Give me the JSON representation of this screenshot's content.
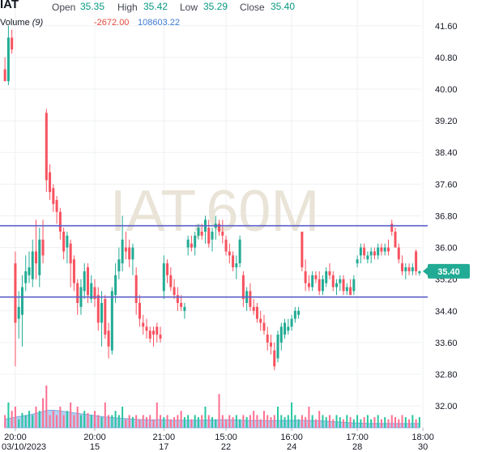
{
  "header": {
    "symbol": "IAT",
    "open_label": "Open",
    "open_value": "35.35",
    "high_label": "High",
    "high_value": "35.42",
    "low_label": "Low",
    "low_value": "35.29",
    "close_label": "Close",
    "close_value": "35.40",
    "volume_label": "Volume",
    "volume_period": "(9)",
    "volume_value_1": "-2672.00",
    "volume_value_2": "108603.22"
  },
  "watermark": "IAT,60M",
  "colors": {
    "up": "#22ab94",
    "down": "#f7525f",
    "level_line": "#5b5fc7",
    "volume_area": "#b6d0f0",
    "volume_area_stroke": "#7aa6df",
    "price_badge": "#22ab94",
    "grid": "#eef0f3"
  },
  "chart_data": {
    "type": "candlestick",
    "y_ticks": [
      "41.60",
      "40.80",
      "40.00",
      "39.20",
      "38.40",
      "37.60",
      "36.80",
      "36.00",
      "35.20",
      "34.40",
      "33.60",
      "32.80",
      "32.00"
    ],
    "ylim": [
      31.45,
      42.25
    ],
    "x_ticks": [
      {
        "bar": 3,
        "time": "20:00",
        "date": "03/10/2023"
      },
      {
        "bar": 26,
        "time": "20:00",
        "date": "15"
      },
      {
        "bar": 46,
        "time": "21:00",
        "date": "17"
      },
      {
        "bar": 64,
        "time": "15:00",
        "date": "22"
      },
      {
        "bar": 83,
        "time": "16:00",
        "date": "24"
      },
      {
        "bar": 102,
        "time": "17:00",
        "date": "28"
      },
      {
        "bar": 121,
        "time": "18:00",
        "date": "30"
      }
    ],
    "horizontal_levels": [
      36.55,
      34.75
    ],
    "last_price": "35.40",
    "candles": [
      [
        40.5,
        40.8,
        40.2,
        40.2
      ],
      [
        40.2,
        41.6,
        40.1,
        41.3
      ],
      [
        41.3,
        41.5,
        40.9,
        41.0
      ],
      [
        35.6,
        35.9,
        33.0,
        34.1
      ],
      [
        34.2,
        34.9,
        33.7,
        34.5
      ],
      [
        34.3,
        35.3,
        33.5,
        35.0
      ],
      [
        35.1,
        35.8,
        34.9,
        35.4
      ],
      [
        35.3,
        35.9,
        35.1,
        35.5
      ],
      [
        35.2,
        36.2,
        35.0,
        35.9
      ],
      [
        35.9,
        36.7,
        35.2,
        35.6
      ],
      [
        35.3,
        36.5,
        35.0,
        36.2
      ],
      [
        36.2,
        36.7,
        35.6,
        35.8
      ],
      [
        39.4,
        39.5,
        37.4,
        37.7
      ],
      [
        37.9,
        38.1,
        37.2,
        37.4
      ],
      [
        37.5,
        37.6,
        36.9,
        37.1
      ],
      [
        37.2,
        37.3,
        36.6,
        36.9
      ],
      [
        36.9,
        37.0,
        36.2,
        36.4
      ],
      [
        36.4,
        36.5,
        35.7,
        35.9
      ],
      [
        36.0,
        36.4,
        35.6,
        36.3
      ],
      [
        36.1,
        36.2,
        35.0,
        35.6
      ],
      [
        35.7,
        35.8,
        34.9,
        35.1
      ],
      [
        35.1,
        35.2,
        34.3,
        34.6
      ],
      [
        34.5,
        35.2,
        34.3,
        35.0
      ],
      [
        34.9,
        35.6,
        34.7,
        35.4
      ],
      [
        35.5,
        35.6,
        34.6,
        34.8
      ],
      [
        34.7,
        35.3,
        34.6,
        35.1
      ],
      [
        35.0,
        35.2,
        34.5,
        34.7
      ],
      [
        34.8,
        35.0,
        33.9,
        34.1
      ],
      [
        34.1,
        34.9,
        33.5,
        34.6
      ],
      [
        34.7,
        34.8,
        33.7,
        33.8
      ],
      [
        33.9,
        34.1,
        33.2,
        33.5
      ],
      [
        33.4,
        35.0,
        33.3,
        34.9
      ],
      [
        34.8,
        35.6,
        34.6,
        35.3
      ],
      [
        35.4,
        36.0,
        35.2,
        35.7
      ],
      [
        35.6,
        36.8,
        35.4,
        36.2
      ],
      [
        36.0,
        36.4,
        35.7,
        35.9
      ],
      [
        36.0,
        36.2,
        35.5,
        35.7
      ],
      [
        35.7,
        36.1,
        35.3,
        36.0
      ],
      [
        35.3,
        35.5,
        34.3,
        34.6
      ],
      [
        34.6,
        34.8,
        34.0,
        34.2
      ],
      [
        34.1,
        34.3,
        33.8,
        34.0
      ],
      [
        34.0,
        34.2,
        33.7,
        33.9
      ],
      [
        33.9,
        34.0,
        33.6,
        33.7
      ],
      [
        33.9,
        34.0,
        33.5,
        33.8
      ],
      [
        34.0,
        34.1,
        33.6,
        33.8
      ],
      [
        33.8,
        34.0,
        33.6,
        33.7
      ],
      [
        34.9,
        35.8,
        34.7,
        35.6
      ],
      [
        35.6,
        35.7,
        35.1,
        35.3
      ],
      [
        35.3,
        35.5,
        34.9,
        35.0
      ],
      [
        35.0,
        35.2,
        34.7,
        34.8
      ],
      [
        34.8,
        35.0,
        34.4,
        34.6
      ],
      [
        34.6,
        34.8,
        34.4,
        34.5
      ],
      [
        34.4,
        34.6,
        34.2,
        34.5
      ],
      [
        36.0,
        36.3,
        35.8,
        36.2
      ],
      [
        36.1,
        36.3,
        35.9,
        36.0
      ],
      [
        36.0,
        36.4,
        35.8,
        36.3
      ],
      [
        36.3,
        36.6,
        36.2,
        36.5
      ],
      [
        36.4,
        36.6,
        36.2,
        36.3
      ],
      [
        36.4,
        36.8,
        36.1,
        36.7
      ],
      [
        36.5,
        36.7,
        36.0,
        36.1
      ],
      [
        36.2,
        36.5,
        35.9,
        36.4
      ],
      [
        36.5,
        36.8,
        36.2,
        36.6
      ],
      [
        36.6,
        36.7,
        36.3,
        36.4
      ],
      [
        36.4,
        36.7,
        36.1,
        36.3
      ],
      [
        36.2,
        36.3,
        35.8,
        35.9
      ],
      [
        35.9,
        36.1,
        35.6,
        35.8
      ],
      [
        35.8,
        35.9,
        35.4,
        35.5
      ],
      [
        35.5,
        35.8,
        35.2,
        35.6
      ],
      [
        35.6,
        36.3,
        35.5,
        36.2
      ],
      [
        35.3,
        35.4,
        34.5,
        34.7
      ],
      [
        34.6,
        35.0,
        34.4,
        34.9
      ],
      [
        34.9,
        35.1,
        34.4,
        34.5
      ],
      [
        34.5,
        34.7,
        34.3,
        34.4
      ],
      [
        34.5,
        34.6,
        34.1,
        34.2
      ],
      [
        34.2,
        34.4,
        33.9,
        34.1
      ],
      [
        34.1,
        34.3,
        33.8,
        33.9
      ],
      [
        33.8,
        34.0,
        33.4,
        33.6
      ],
      [
        33.6,
        33.8,
        33.3,
        33.5
      ],
      [
        33.4,
        33.6,
        32.9,
        33.0
      ],
      [
        33.2,
        33.9,
        33.1,
        33.8
      ],
      [
        33.6,
        34.1,
        33.4,
        34.0
      ],
      [
        33.8,
        34.2,
        33.7,
        34.1
      ],
      [
        33.9,
        34.2,
        33.8,
        34.0
      ],
      [
        34.0,
        34.3,
        33.9,
        34.2
      ],
      [
        34.2,
        34.5,
        34.1,
        34.4
      ],
      [
        34.3,
        34.5,
        34.2,
        34.4
      ],
      [
        36.4,
        36.4,
        35.4,
        35.5
      ],
      [
        35.4,
        35.7,
        34.9,
        35.1
      ],
      [
        35.1,
        35.3,
        34.9,
        35.0
      ],
      [
        35.0,
        35.4,
        34.9,
        35.3
      ],
      [
        35.3,
        35.4,
        35.1,
        35.2
      ],
      [
        35.2,
        35.4,
        34.8,
        34.9
      ],
      [
        34.9,
        35.3,
        34.8,
        35.2
      ],
      [
        35.1,
        35.5,
        35.0,
        35.4
      ],
      [
        35.4,
        35.6,
        35.2,
        35.3
      ],
      [
        35.3,
        35.4,
        34.9,
        35.0
      ],
      [
        35.0,
        35.2,
        34.8,
        35.1
      ],
      [
        35.1,
        35.3,
        34.9,
        35.2
      ],
      [
        35.2,
        35.3,
        34.8,
        34.9
      ],
      [
        34.9,
        35.1,
        34.8,
        35.0
      ],
      [
        35.0,
        35.2,
        34.8,
        34.8
      ],
      [
        34.9,
        35.3,
        34.8,
        35.2
      ],
      [
        35.6,
        35.8,
        35.5,
        35.7
      ],
      [
        35.8,
        36.1,
        35.6,
        36.0
      ],
      [
        36.0,
        36.1,
        35.7,
        35.8
      ],
      [
        35.7,
        35.9,
        35.6,
        35.8
      ],
      [
        35.8,
        36.0,
        35.6,
        35.9
      ],
      [
        35.9,
        36.0,
        35.7,
        35.8
      ],
      [
        35.8,
        36.1,
        35.7,
        36.0
      ],
      [
        36.0,
        36.1,
        35.8,
        35.9
      ],
      [
        35.9,
        36.1,
        35.8,
        36.0
      ],
      [
        36.0,
        36.2,
        35.8,
        35.9
      ],
      [
        36.6,
        36.7,
        36.3,
        36.4
      ],
      [
        36.4,
        36.5,
        36.0,
        36.0
      ],
      [
        36.0,
        36.1,
        35.6,
        35.7
      ],
      [
        35.6,
        35.8,
        35.3,
        35.4
      ],
      [
        35.4,
        35.6,
        35.2,
        35.5
      ],
      [
        35.5,
        35.6,
        35.3,
        35.4
      ],
      [
        35.4,
        35.6,
        35.3,
        35.5
      ],
      [
        35.9,
        35.95,
        35.3,
        35.4
      ],
      [
        35.35,
        35.42,
        35.29,
        35.4
      ]
    ],
    "volumes": [
      0.3,
      0.6,
      0.4,
      0.5,
      0.2,
      0.35,
      0.3,
      0.4,
      0.3,
      0.5,
      0.4,
      0.7,
      1.0,
      0.3,
      0.4,
      0.3,
      0.5,
      0.3,
      0.4,
      0.6,
      0.3,
      0.5,
      0.3,
      0.4,
      0.35,
      0.3,
      0.4,
      0.3,
      0.25,
      0.6,
      0.3,
      0.3,
      0.4,
      0.3,
      0.5,
      0.2,
      0.3,
      0.25,
      0.3,
      0.2,
      0.3,
      0.25,
      0.3,
      0.2,
      0.6,
      0.3,
      0.25,
      0.3,
      0.2,
      0.25,
      0.3,
      0.4,
      0.25,
      0.3,
      0.2,
      0.3,
      0.25,
      0.3,
      0.5,
      0.3,
      0.25,
      0.2,
      0.8,
      0.3,
      0.2,
      0.3,
      0.25,
      0.3,
      0.2,
      0.3,
      0.25,
      0.3,
      0.4,
      0.3,
      0.2,
      0.4,
      0.3,
      0.25,
      0.3,
      0.5,
      0.3,
      0.25,
      0.3,
      0.6,
      0.3,
      0.2,
      0.3,
      0.25,
      0.5,
      0.3,
      0.2,
      0.4,
      0.3,
      0.25,
      0.3,
      0.2,
      0.3,
      0.25,
      0.2,
      0.3,
      0.25,
      0.2,
      0.3,
      0.2,
      0.25,
      0.3,
      0.2,
      0.25,
      0.3,
      0.2,
      0.25,
      0.2,
      0.3,
      0.25,
      0.2,
      0.3,
      0.25,
      0.2,
      0.3,
      0.2,
      0.25
    ],
    "volume_ma": [
      0.35,
      0.4,
      0.42,
      0.45,
      0.48,
      0.5,
      0.52,
      0.55,
      0.58,
      0.62,
      0.65,
      0.7,
      0.74,
      0.75,
      0.75,
      0.74,
      0.72,
      0.7,
      0.68,
      0.66,
      0.64,
      0.62,
      0.6,
      0.58,
      0.56,
      0.54,
      0.52,
      0.5,
      0.48,
      0.46,
      0.45,
      0.44,
      0.42,
      0.41,
      0.4,
      0.39,
      0.38,
      0.37,
      0.36,
      0.35,
      0.34,
      0.34,
      0.33,
      0.33,
      0.34,
      0.34,
      0.33,
      0.33,
      0.32,
      0.32,
      0.32,
      0.32,
      0.32,
      0.32,
      0.32,
      0.32,
      0.32,
      0.32,
      0.33,
      0.33,
      0.33,
      0.33,
      0.34,
      0.34,
      0.34,
      0.34,
      0.33,
      0.33,
      0.32,
      0.32,
      0.31,
      0.31,
      0.31,
      0.31,
      0.31,
      0.31,
      0.3,
      0.3,
      0.3,
      0.31,
      0.31,
      0.31,
      0.31,
      0.32,
      0.32,
      0.32,
      0.32,
      0.31,
      0.31,
      0.31,
      0.3,
      0.3,
      0.29,
      0.28,
      0.27,
      0.26,
      0.25,
      0.24,
      0.23,
      0.22,
      0.21,
      0.2,
      0.2,
      0.19,
      0.19,
      0.18,
      0.18,
      0.18,
      0.18,
      0.18,
      0.18,
      0.18,
      0.18,
      0.18,
      0.18,
      0.18,
      0.18,
      0.18,
      0.18,
      0.18,
      0.18
    ]
  }
}
